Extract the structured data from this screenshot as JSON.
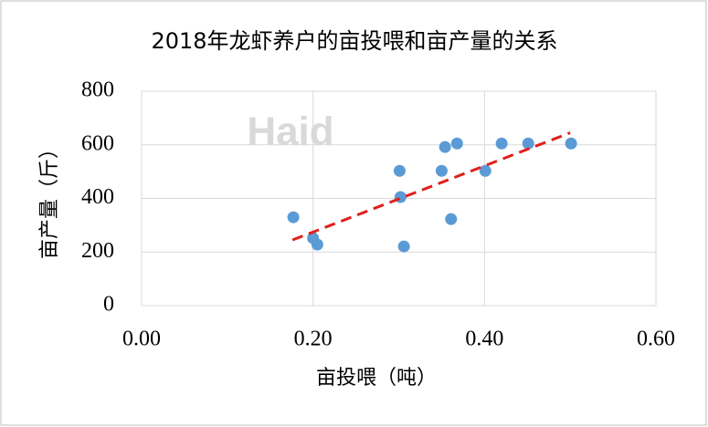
{
  "chart_data": {
    "type": "scatter",
    "title": "2018年龙虾养户的亩投喂和亩产量的关系",
    "x_label": "亩投喂（吨）",
    "y_label": "亩产量（斤）",
    "watermark": "Haid",
    "series": [
      {
        "name": "亩投喂和亩产量",
        "color": "#5b9bd5",
        "x": [
          0.177,
          0.2,
          0.205,
          0.301,
          0.302,
          0.306,
          0.35,
          0.354,
          0.361,
          0.368,
          0.401,
          0.42,
          0.451,
          0.501
        ],
        "values": [
          330,
          252,
          228,
          503,
          405,
          221,
          503,
          592,
          323,
          605,
          503,
          605,
          605,
          605
        ]
      }
    ],
    "trendline": {
      "color": "#e0201c",
      "x": [
        0.176,
        0.5
      ],
      "values": [
        245,
        645
      ]
    },
    "xlim": [
      0,
      0.6
    ],
    "ylim": [
      0,
      800
    ],
    "xticks": [
      {
        "value": 0,
        "label": "0.00"
      },
      {
        "value": 0.2,
        "label": "0.20"
      },
      {
        "value": 0.4,
        "label": "0.40"
      },
      {
        "value": 0.6,
        "label": "0.60"
      }
    ],
    "yticks": [
      0,
      200,
      400,
      600,
      800
    ],
    "grid": true
  }
}
